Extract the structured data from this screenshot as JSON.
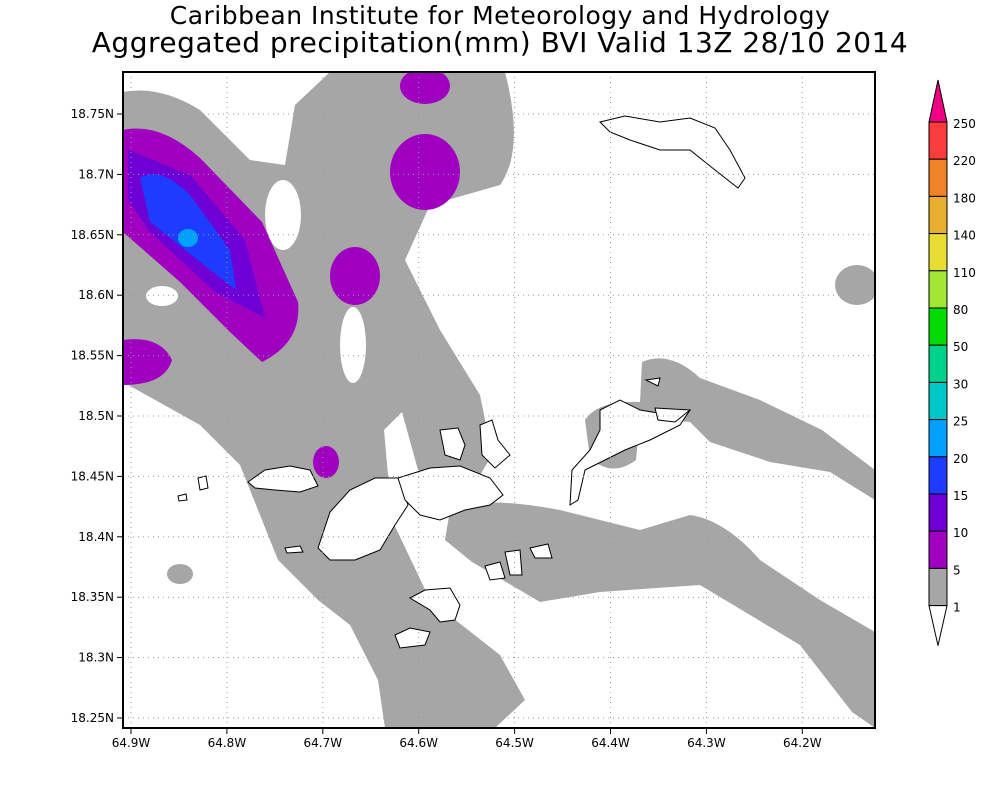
{
  "title": {
    "line1": "Caribbean Institute for Meteorology and Hydrology",
    "line2": "Aggregated precipitation(mm) BVI Valid 13Z 28/10 2014"
  },
  "chart_data": {
    "type": "contour-map",
    "region": "BVI",
    "units": "mm",
    "lon_ticks": [
      "64.9W",
      "64.8W",
      "64.7W",
      "64.6W",
      "64.5W",
      "64.4W",
      "64.3W",
      "64.2W"
    ],
    "lat_ticks": [
      "18.75N",
      "18.7N",
      "18.65N",
      "18.6N",
      "18.55N",
      "18.5N",
      "18.45N",
      "18.4N",
      "18.35N",
      "18.3N",
      "18.25N"
    ],
    "lon_range": [
      -64.91,
      -64.13
    ],
    "lat_range": [
      18.24,
      18.79
    ],
    "grid": true,
    "legend": {
      "placement": "right",
      "levels": [
        "1",
        "5",
        "10",
        "15",
        "20",
        "25",
        "30",
        "50",
        "80",
        "110",
        "140",
        "180",
        "220",
        "250"
      ],
      "colors": [
        "#ffffff",
        "#a6a6a6",
        "#a000c0",
        "#6e00d6",
        "#1e3cff",
        "#00a0ff",
        "#00c8c8",
        "#00d28c",
        "#00dc00",
        "#a0e632",
        "#e6dc32",
        "#e6af2d",
        "#f08228",
        "#fa3c3c",
        "#f00082"
      ]
    }
  }
}
